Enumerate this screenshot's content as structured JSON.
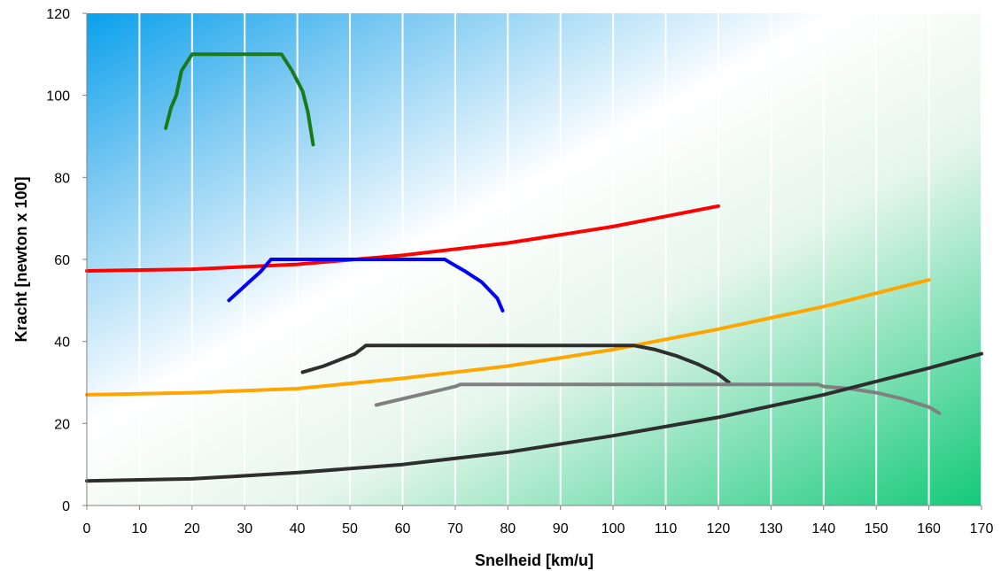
{
  "chart_data": {
    "type": "line",
    "title": "",
    "xlabel": "Snelheid [km/u]",
    "ylabel": "Kracht [newton x 100]",
    "xlim": [
      0,
      170
    ],
    "ylim": [
      0,
      120
    ],
    "x_ticks": [
      0,
      10,
      20,
      30,
      40,
      50,
      60,
      70,
      80,
      90,
      100,
      110,
      120,
      130,
      140,
      150,
      160,
      170
    ],
    "y_ticks": [
      0,
      20,
      40,
      60,
      80,
      100,
      120
    ],
    "grid": "vertical",
    "legend": "none",
    "background": "gradient sky-blue (top-left) to white to green (bottom-right)",
    "series": [
      {
        "color": "#1a7a1a",
        "x": [
          15,
          16,
          17,
          18,
          19,
          20,
          25,
          30,
          35,
          37,
          39,
          41,
          42,
          43
        ],
        "y": [
          92,
          97,
          100,
          106,
          108,
          110,
          110,
          110,
          110,
          110,
          106,
          101,
          96,
          88
        ]
      },
      {
        "color": "#ff0000",
        "x": [
          0,
          20,
          40,
          60,
          80,
          100,
          120
        ],
        "y": [
          57.2,
          57.6,
          58.8,
          61,
          64,
          68,
          73
        ]
      },
      {
        "color": "#0000ff",
        "x": [
          27,
          30,
          33,
          35,
          40,
          50,
          60,
          68,
          72,
          75,
          78,
          79
        ],
        "y": [
          50,
          53.5,
          57,
          60,
          60,
          60,
          60,
          60,
          57,
          54.5,
          50.5,
          47.5
        ]
      },
      {
        "color": "#ffa500",
        "x": [
          0,
          20,
          40,
          60,
          80,
          100,
          120,
          140,
          160
        ],
        "y": [
          27,
          27.5,
          28.5,
          31,
          34,
          38,
          43,
          48.5,
          55
        ]
      },
      {
        "color": "#2e2e2e",
        "x": [
          41,
          45,
          48,
          51,
          53,
          60,
          80,
          100,
          104,
          108,
          112,
          116,
          120,
          122
        ],
        "y": [
          32.5,
          34,
          35.5,
          37,
          39,
          39,
          39,
          39,
          39,
          38,
          36.5,
          34.5,
          32,
          30
        ]
      },
      {
        "color": "#808080",
        "x": [
          55,
          60,
          65,
          70,
          71,
          80,
          100,
          120,
          139,
          140,
          145,
          150,
          155,
          160,
          162
        ],
        "y": [
          24.5,
          26,
          27.5,
          29,
          29.5,
          29.5,
          29.5,
          29.5,
          29.5,
          29,
          28.5,
          27.5,
          26,
          24,
          22.5
        ]
      },
      {
        "color": "#2e2e2e",
        "x": [
          0,
          20,
          40,
          60,
          80,
          100,
          120,
          140,
          160,
          170
        ],
        "y": [
          6,
          6.5,
          8,
          10,
          13,
          17,
          21.5,
          27,
          33.5,
          37
        ]
      }
    ]
  }
}
